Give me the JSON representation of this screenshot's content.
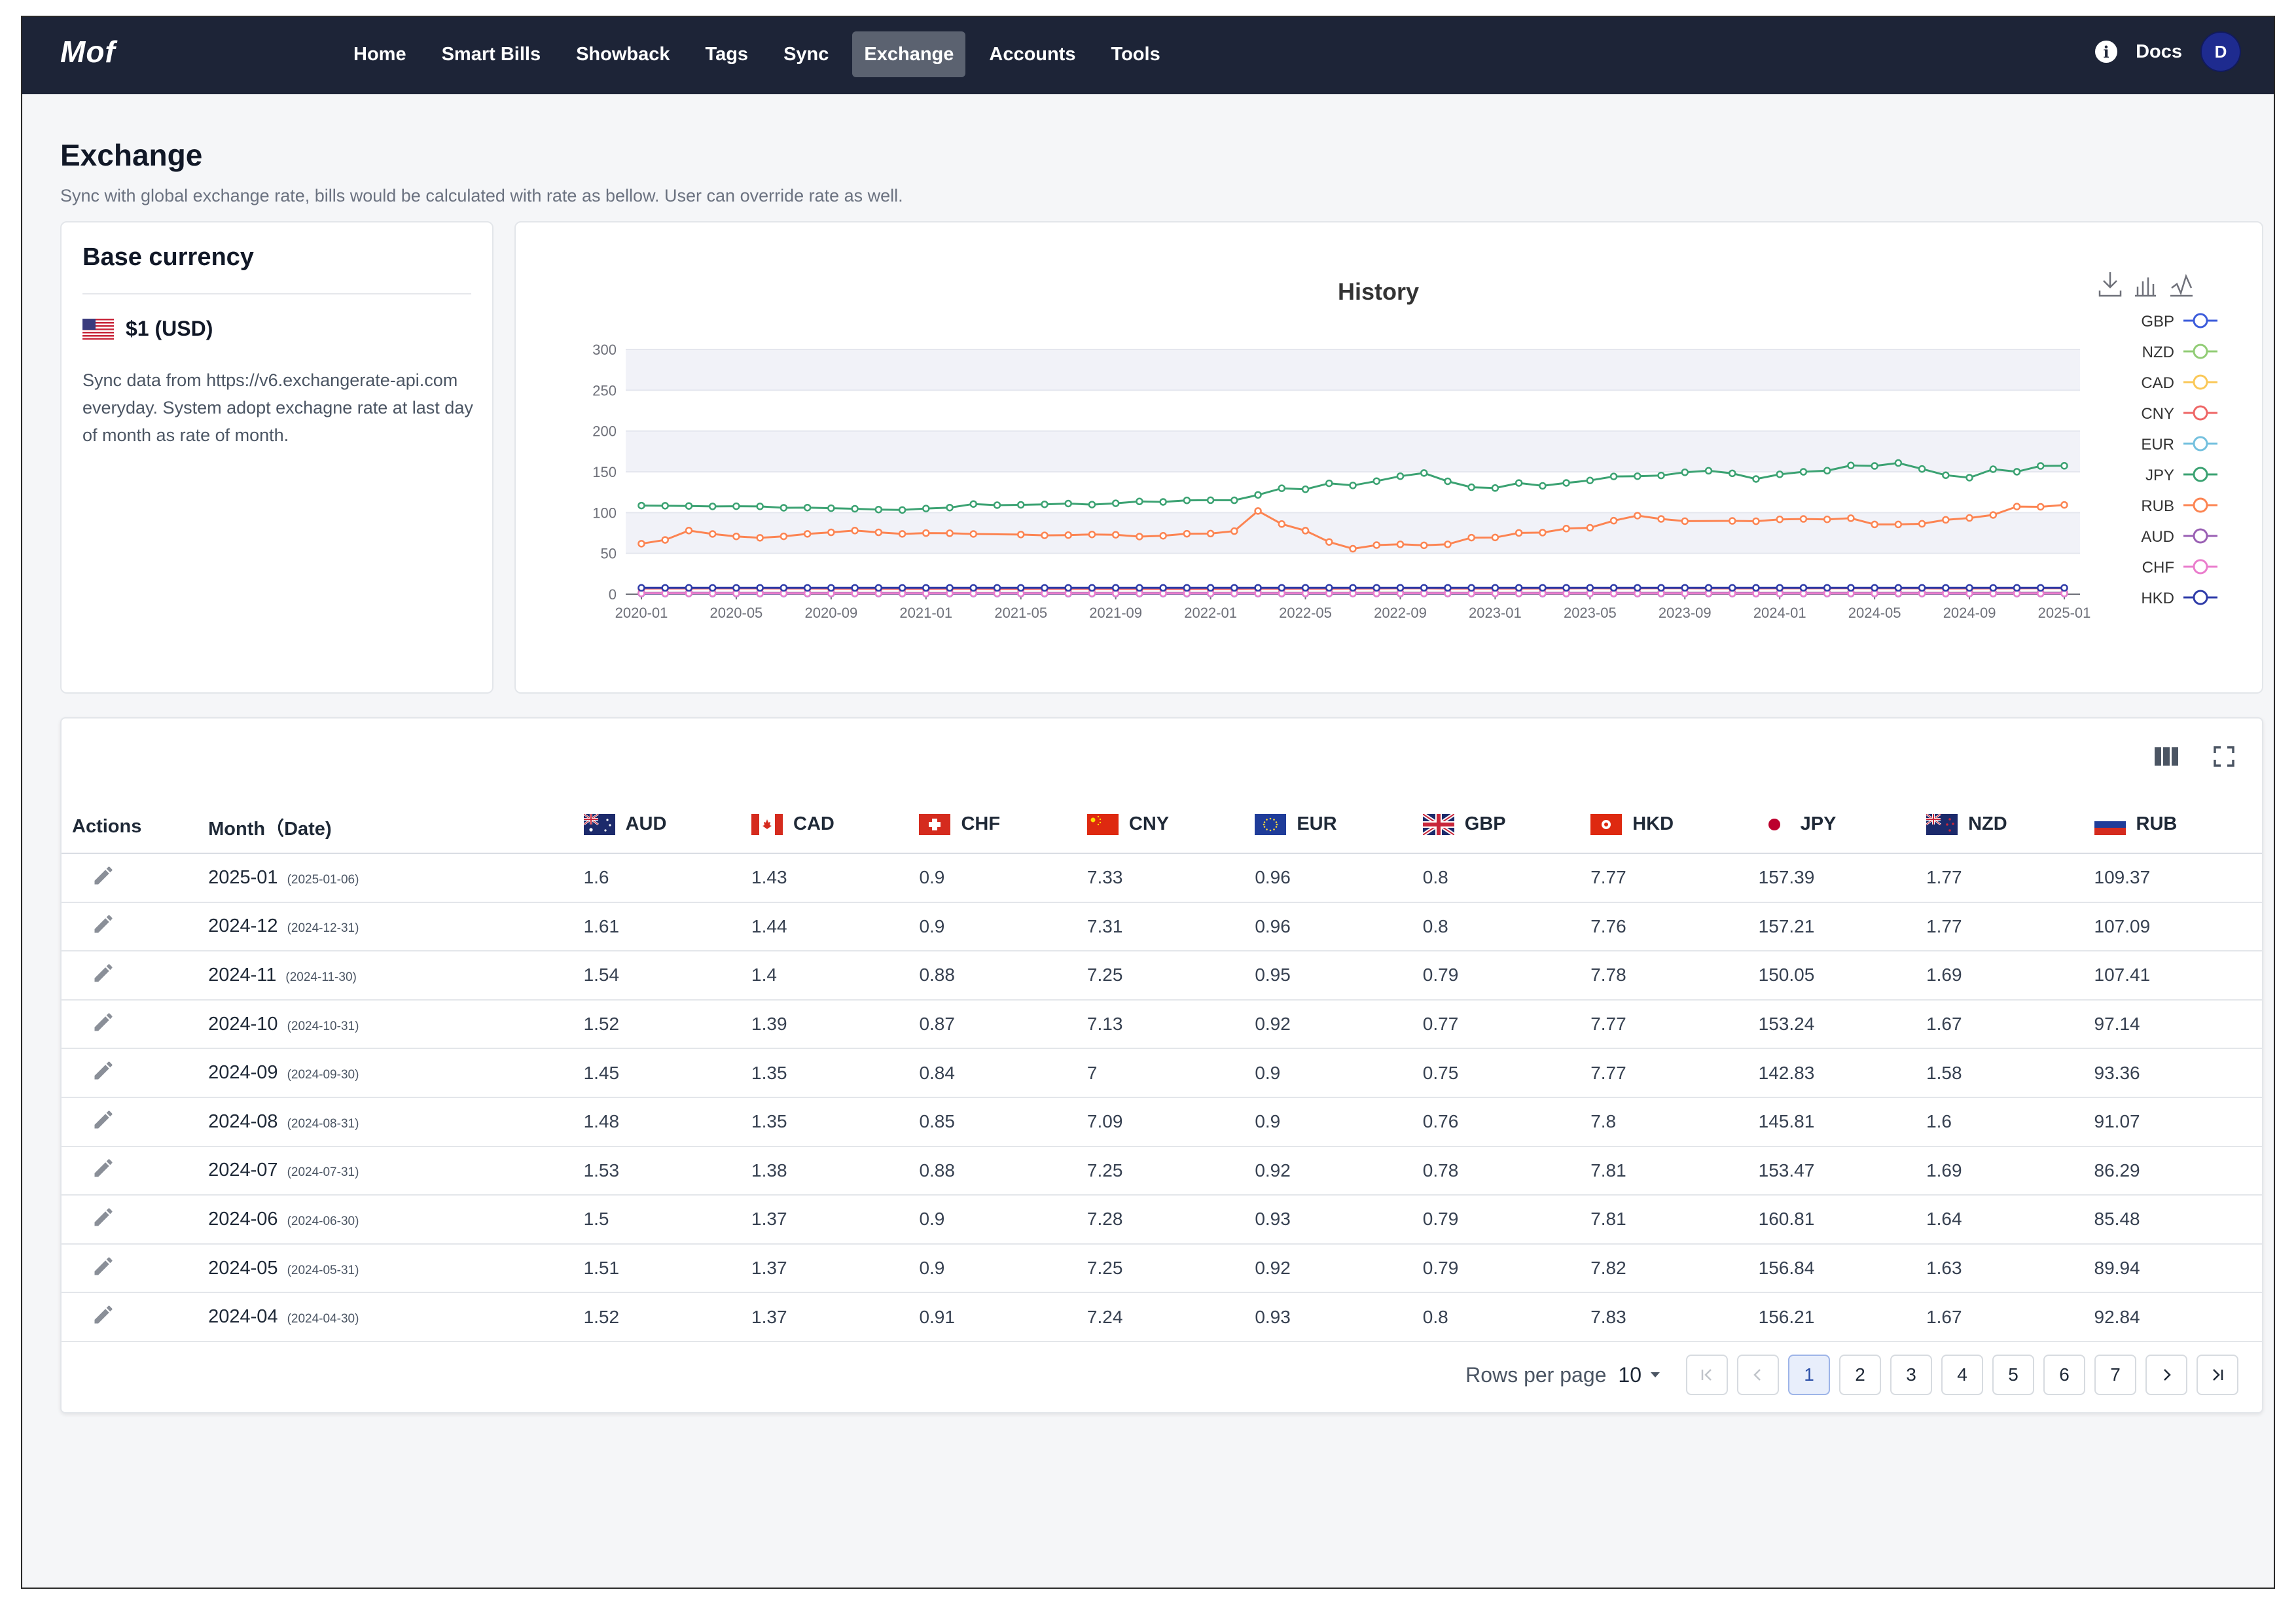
{
  "app": {
    "brand": "Mof"
  },
  "nav": {
    "items": [
      {
        "label": "Home",
        "active": false
      },
      {
        "label": "Smart Bills",
        "active": false
      },
      {
        "label": "Showback",
        "active": false
      },
      {
        "label": "Tags",
        "active": false
      },
      {
        "label": "Sync",
        "active": false
      },
      {
        "label": "Exchange",
        "active": true
      },
      {
        "label": "Accounts",
        "active": false
      },
      {
        "label": "Tools",
        "active": false
      }
    ],
    "docs_label": "Docs",
    "avatar_initial": "D",
    "info_icon": "i"
  },
  "page": {
    "title": "Exchange",
    "subtitle": "Sync with global exchange rate, bills would be calculated with rate as bellow. User can override rate as well."
  },
  "base_currency": {
    "title": "Base currency",
    "value": "$1 (USD)",
    "description": "Sync data from https://v6.exchangerate-api.com everyday. System adopt exchagne rate at last day of month as rate of month."
  },
  "chart_data": {
    "type": "line",
    "title": "History",
    "ylim": [
      0,
      300
    ],
    "yticks": [
      0,
      50,
      100,
      150,
      200,
      250,
      300
    ],
    "xtick_labels": [
      "2020-01",
      "2020-05",
      "2020-09",
      "2021-01",
      "2021-05",
      "2021-09",
      "2022-01",
      "2022-05",
      "2022-09",
      "2023-01",
      "2023-05",
      "2023-09",
      "2024-01",
      "2024-05",
      "2024-09",
      "2025-01"
    ],
    "grid": true,
    "legend_position": "right",
    "series": [
      {
        "name": "GBP",
        "color": "#3b5bdb",
        "values": [
          0.76,
          0.77,
          0.81,
          0.77,
          0.76,
          0.76,
          0.75,
          0.8,
          0.82,
          0.81,
          0.81,
          0.77,
          0.74,
          0.73,
          0.72,
          0.72,
          0.73,
          0.73,
          0.71,
          0.7,
          0.72,
          0.73,
          0.74,
          0.75,
          0.74,
          0.76,
          0.74,
          0.74,
          0.76,
          0.79,
          0.82,
          0.82,
          0.84,
          0.86,
          0.89,
          0.84,
          0.83,
          0.83,
          0.82,
          0.81,
          0.81,
          0.8,
          0.8,
          0.78,
          0.78,
          0.77,
          0.8,
          0.82,
          0.79,
          0.79,
          0.79,
          0.79,
          0.79,
          0.79,
          0.8,
          0.79,
          0.79,
          0.79,
          0.78,
          0.76,
          0.75,
          0.77,
          0.79,
          0.8,
          0.8
        ]
      },
      {
        "name": "NZD",
        "color": "#91cc75",
        "values": [
          1.52,
          1.58,
          1.68,
          1.6,
          1.58,
          1.56,
          1.51,
          1.52,
          1.49,
          1.48,
          1.39,
          1.45,
          1.39,
          1.4,
          1.42,
          1.39,
          1.39,
          1.4,
          1.44,
          1.42,
          1.45,
          1.45,
          1.38,
          1.39,
          1.46,
          1.48,
          1.49,
          1.43,
          1.51,
          1.53,
          1.6,
          1.6,
          1.76,
          1.78,
          1.69,
          1.58,
          1.57,
          1.58,
          1.59,
          1.59,
          1.63,
          1.6,
          1.64,
          1.61,
          1.68,
          1.71,
          1.66,
          1.64,
          1.59,
          1.64,
          1.62,
          1.66,
          1.63,
          1.67,
          1.64,
          1.69,
          1.6,
          1.58,
          1.67,
          1.69,
          1.69,
          1.77,
          1.77
        ]
      },
      {
        "name": "CAD",
        "color": "#fac858",
        "values": [
          1.3,
          1.33,
          1.41,
          1.39,
          1.36,
          1.36,
          1.32,
          1.32,
          1.33,
          1.32,
          1.27,
          1.28,
          1.27,
          1.27,
          1.24,
          1.25,
          1.2,
          1.24,
          1.24,
          1.26,
          1.27,
          1.27,
          1.28,
          1.26,
          1.25,
          1.28,
          1.25,
          1.27,
          1.29,
          1.28,
          1.31,
          1.29,
          1.37,
          1.38,
          1.32,
          1.36,
          1.35,
          1.36,
          1.36,
          1.35,
          1.36,
          1.32,
          1.31,
          1.35,
          1.36,
          1.38,
          1.37,
          1.32,
          1.34,
          1.35,
          1.36,
          1.35,
          1.37,
          1.37,
          1.37,
          1.37,
          1.38,
          1.35,
          1.35,
          1.35,
          1.39,
          1.4,
          1.44,
          1.43
        ]
      },
      {
        "name": "CNY",
        "color": "#ee6666",
        "values": [
          6.9,
          6.99,
          7.08,
          7.12,
          7.11,
          7.13,
          7.06,
          7.08,
          6.81,
          6.73,
          6.57,
          6.54,
          6.46,
          6.47,
          6.55,
          6.55,
          6.39,
          6.37,
          6.47,
          6.47,
          6.47,
          6.45,
          6.4,
          6.37,
          6.34,
          6.33,
          6.32,
          6.31,
          6.7,
          6.67,
          6.7,
          6.74,
          6.92,
          6.96,
          7.21,
          7.25,
          6.92,
          6.9,
          6.86,
          6.9,
          6.99,
          7.03,
          7.1,
          7.26,
          7.15,
          7.18,
          7.3,
          7.27,
          7.13,
          7.1,
          7.17,
          7.19,
          7.22,
          7.26,
          7.26,
          7.25,
          7.25,
          7.28,
          7.25,
          7.09,
          7,
          7.13,
          7.25,
          7.31,
          7.33
        ]
      },
      {
        "name": "EUR",
        "color": "#73c0de",
        "values": [
          0.9,
          0.91,
          0.91,
          0.92,
          0.92,
          0.89,
          0.89,
          0.84,
          0.85,
          0.86,
          0.86,
          0.82,
          0.82,
          0.83,
          0.85,
          0.83,
          0.82,
          0.82,
          0.84,
          0.84,
          0.85,
          0.86,
          0.86,
          0.88,
          0.88,
          0.89,
          0.9,
          0.91,
          0.93,
          0.96,
          0.99,
          1.02,
          1.02,
          0.97,
          0.94,
          0.93,
          0.94,
          0.92,
          0.92,
          0.91,
          0.91,
          0.92,
          0.93,
          0.92,
          0.94,
          0.95,
          0.91,
          0.91,
          0.92,
          0.93,
          0.92,
          0.93,
          0.92,
          0.93,
          0.92,
          0.92,
          0.9,
          0.9,
          0.92,
          0.95,
          0.96,
          0.96
        ]
      },
      {
        "name": "JPY",
        "color": "#3ba272",
        "values": [
          108.6,
          108.4,
          108.1,
          107.6,
          107.8,
          107.6,
          105.9,
          106.1,
          105.4,
          104.7,
          103.7,
          103.2,
          105,
          106.1,
          110.5,
          109.1,
          109.5,
          110.1,
          111.1,
          109.8,
          111.4,
          113.7,
          113.1,
          115,
          115.2,
          115.1,
          121.7,
          129.8,
          128.6,
          135.9,
          133.3,
          138.6,
          144.6,
          148.5,
          138.4,
          131.1,
          130.1,
          136.3,
          132.8,
          136.4,
          139.4,
          144.3,
          144.6,
          145.5,
          149.4,
          151.3,
          148.1,
          141.2,
          146.9,
          150,
          151.4,
          157.8,
          157.2,
          160.8,
          153.5,
          145.8,
          142.8,
          153.2,
          150.1,
          157.2,
          157.4
        ]
      },
      {
        "name": "RUB",
        "color": "#fc8452",
        "values": [
          61.9,
          66.5,
          78,
          73.8,
          70.8,
          69.1,
          70.9,
          73.9,
          75.8,
          78,
          75.8,
          73.9,
          74.9,
          74.7,
          73.8,
          73.1,
          72.1,
          72.4,
          73.2,
          72.8,
          70.6,
          71.6,
          74.1,
          74.3,
          77.3,
          102,
          86,
          77.9,
          64,
          55.7,
          60.2,
          61.1,
          59.9,
          61.1,
          69.3,
          69.5,
          75.1,
          75.5,
          80.4,
          81.4,
          90.1,
          96.3,
          92.2,
          89.5,
          89.8,
          89.4,
          91.7,
          92.2,
          91.7,
          93.1,
          85.5,
          85.5,
          86.3,
          91.1,
          93.4,
          97.1,
          107.4,
          107.1,
          109.4
        ]
      },
      {
        "name": "AUD",
        "color": "#9a60b4",
        "values": [
          1.42,
          1.49,
          1.6,
          1.57,
          1.53,
          1.5,
          1.45,
          1.4,
          1.39,
          1.4,
          1.36,
          1.35,
          1.3,
          1.31,
          1.32,
          1.29,
          1.3,
          1.33,
          1.33,
          1.37,
          1.36,
          1.38,
          1.33,
          1.4,
          1.38,
          1.39,
          1.33,
          1.33,
          1.39,
          1.44,
          1.45,
          1.46,
          1.54,
          1.55,
          1.49,
          1.47,
          1.46,
          1.48,
          1.49,
          1.49,
          1.5,
          1.5,
          1.5,
          1.53,
          1.56,
          1.58,
          1.52,
          1.46,
          1.5,
          1.53,
          1.53,
          1.54,
          1.51,
          1.5,
          1.53,
          1.48,
          1.45,
          1.52,
          1.54,
          1.61,
          1.6
        ]
      },
      {
        "name": "CHF",
        "color": "#ea7ccc",
        "values": [
          0.97,
          0.96,
          0.96,
          0.97,
          0.96,
          0.95,
          0.92,
          0.91,
          0.92,
          0.91,
          0.91,
          0.88,
          0.89,
          0.91,
          0.94,
          0.92,
          0.9,
          0.92,
          0.91,
          0.92,
          0.93,
          0.91,
          0.92,
          0.91,
          0.92,
          0.93,
          0.92,
          0.92,
          0.97,
          0.96,
          0.95,
          0.96,
          0.96,
          0.99,
          0.99,
          0.94,
          0.92,
          0.94,
          0.91,
          0.89,
          0.89,
          0.9,
          0.87,
          0.91,
          0.92,
          0.91,
          0.88,
          0.84,
          0.9,
          0.9,
          0.91,
          0.91,
          0.9,
          0.9,
          0.88,
          0.85,
          0.84,
          0.87,
          0.88,
          0.9,
          0.9
        ]
      },
      {
        "name": "HKD",
        "color": "#2e3ba8",
        "values": [
          7.78,
          7.77,
          7.79,
          7.75,
          7.75,
          7.75,
          7.75,
          7.75,
          7.75,
          7.75,
          7.75,
          7.75,
          7.75,
          7.76,
          7.77,
          7.78,
          7.77,
          7.76,
          7.77,
          7.78,
          7.78,
          7.79,
          7.79,
          7.8,
          7.8,
          7.82,
          7.83,
          7.85,
          7.85,
          7.85,
          7.85,
          7.85,
          7.85,
          7.85,
          7.82,
          7.79,
          7.8,
          7.83,
          7.85,
          7.85,
          7.83,
          7.82,
          7.82,
          7.81,
          7.83,
          7.82,
          7.81,
          7.81,
          7.82,
          7.83,
          7.83,
          7.82,
          7.81,
          7.81,
          7.8,
          7.77,
          7.77,
          7.77,
          7.78,
          7.76,
          7.77
        ]
      }
    ]
  },
  "chart_toolbox_icons": [
    "download-icon",
    "bar-chart-icon",
    "line-chart-icon"
  ],
  "table": {
    "columns": {
      "actions": "Actions",
      "month": "Month（Date)",
      "currencies": [
        "AUD",
        "CAD",
        "CHF",
        "CNY",
        "EUR",
        "GBP",
        "HKD",
        "JPY",
        "NZD",
        "RUB"
      ]
    },
    "rows": [
      {
        "month": "2025-01",
        "date": "(2025-01-06)",
        "values": [
          "1.6",
          "1.43",
          "0.9",
          "7.33",
          "0.96",
          "0.8",
          "7.77",
          "157.39",
          "1.77",
          "109.37"
        ]
      },
      {
        "month": "2024-12",
        "date": "(2024-12-31)",
        "values": [
          "1.61",
          "1.44",
          "0.9",
          "7.31",
          "0.96",
          "0.8",
          "7.76",
          "157.21",
          "1.77",
          "107.09"
        ]
      },
      {
        "month": "2024-11",
        "date": "(2024-11-30)",
        "values": [
          "1.54",
          "1.4",
          "0.88",
          "7.25",
          "0.95",
          "0.79",
          "7.78",
          "150.05",
          "1.69",
          "107.41"
        ]
      },
      {
        "month": "2024-10",
        "date": "(2024-10-31)",
        "values": [
          "1.52",
          "1.39",
          "0.87",
          "7.13",
          "0.92",
          "0.77",
          "7.77",
          "153.24",
          "1.67",
          "97.14"
        ]
      },
      {
        "month": "2024-09",
        "date": "(2024-09-30)",
        "values": [
          "1.45",
          "1.35",
          "0.84",
          "7",
          "0.9",
          "0.75",
          "7.77",
          "142.83",
          "1.58",
          "93.36"
        ]
      },
      {
        "month": "2024-08",
        "date": "(2024-08-31)",
        "values": [
          "1.48",
          "1.35",
          "0.85",
          "7.09",
          "0.9",
          "0.76",
          "7.8",
          "145.81",
          "1.6",
          "91.07"
        ]
      },
      {
        "month": "2024-07",
        "date": "(2024-07-31)",
        "values": [
          "1.53",
          "1.38",
          "0.88",
          "7.25",
          "0.92",
          "0.78",
          "7.81",
          "153.47",
          "1.69",
          "86.29"
        ]
      },
      {
        "month": "2024-06",
        "date": "(2024-06-30)",
        "values": [
          "1.5",
          "1.37",
          "0.9",
          "7.28",
          "0.93",
          "0.79",
          "7.81",
          "160.81",
          "1.64",
          "85.48"
        ]
      },
      {
        "month": "2024-05",
        "date": "(2024-05-31)",
        "values": [
          "1.51",
          "1.37",
          "0.9",
          "7.25",
          "0.92",
          "0.79",
          "7.82",
          "156.84",
          "1.63",
          "89.94"
        ]
      },
      {
        "month": "2024-04",
        "date": "(2024-04-30)",
        "values": [
          "1.52",
          "1.37",
          "0.91",
          "7.24",
          "0.93",
          "0.8",
          "7.83",
          "156.21",
          "1.67",
          "92.84"
        ]
      }
    ]
  },
  "pagination": {
    "rows_per_page_label": "Rows per page",
    "rows_per_page_value": "10",
    "pages": [
      "1",
      "2",
      "3",
      "4",
      "5",
      "6",
      "7"
    ],
    "current_page": "1"
  }
}
